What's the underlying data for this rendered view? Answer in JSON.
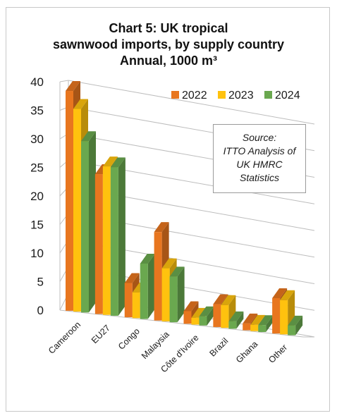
{
  "chart_data": {
    "type": "bar",
    "title_lines": [
      "Chart 5: UK tropical",
      "sawnwood imports, by supply country",
      "Annual, 1000 m³"
    ],
    "categories": [
      "Cameroon",
      "EU27",
      "Congo",
      "Malaysia",
      "Côte d'Ivoire",
      "Brazil",
      "Ghana",
      "Other"
    ],
    "series": [
      {
        "name": "2022",
        "color": "#E8761F",
        "values": [
          38.5,
          24.5,
          6.0,
          15.5,
          2.2,
          4.0,
          1.2,
          6.2
        ]
      },
      {
        "name": "2023",
        "color": "#FFC20E",
        "values": [
          35.5,
          26.0,
          4.5,
          9.3,
          1.2,
          4.0,
          1.1,
          6.0
        ]
      },
      {
        "name": "2024",
        "color": "#6AA84F",
        "values": [
          30.0,
          26.0,
          9.7,
          8.0,
          1.6,
          1.3,
          1.2,
          1.7
        ]
      }
    ],
    "ylim": [
      0,
      40
    ],
    "yticks": [
      0,
      5,
      10,
      15,
      20,
      25,
      30,
      35,
      40
    ],
    "grid": true,
    "legend_position": "top-right",
    "annotation_lines": [
      "Source:",
      "ITTO Analysis of",
      "UK HMRC",
      "Statistics"
    ]
  }
}
